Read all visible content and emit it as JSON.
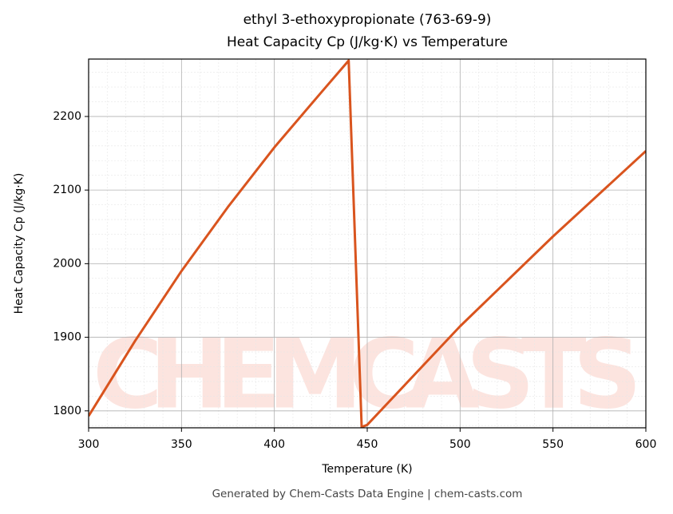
{
  "chart_data": {
    "type": "line",
    "title": "ethyl 3-ethoxypropionate (763-69-9)",
    "subtitle": "Heat Capacity Cp (J/kg·K) vs Temperature",
    "x_label": "Temperature (K)",
    "y_label": "Heat Capacity Cp (J/kg·K)",
    "footer": "Generated by Chem-Casts Data Engine | chem-casts.com",
    "watermark": "CHEMCASTS",
    "x": [
      300,
      325,
      350,
      375,
      400,
      425,
      440,
      447,
      450,
      500,
      550,
      600
    ],
    "series": [
      {
        "name": "Cp",
        "color": "#d9541e",
        "values": [
          1793,
          1895,
          1990,
          2077,
          2158,
          2232,
          2276,
          1778,
          1781,
          1915,
          2037,
          2153
        ]
      }
    ],
    "xlim": [
      300,
      600
    ],
    "ylim": [
      1777,
      2278
    ],
    "xticks": [
      300,
      350,
      400,
      450,
      500,
      550,
      600
    ],
    "yticks": [
      1800,
      1900,
      2000,
      2100,
      2200
    ],
    "grid": true
  }
}
